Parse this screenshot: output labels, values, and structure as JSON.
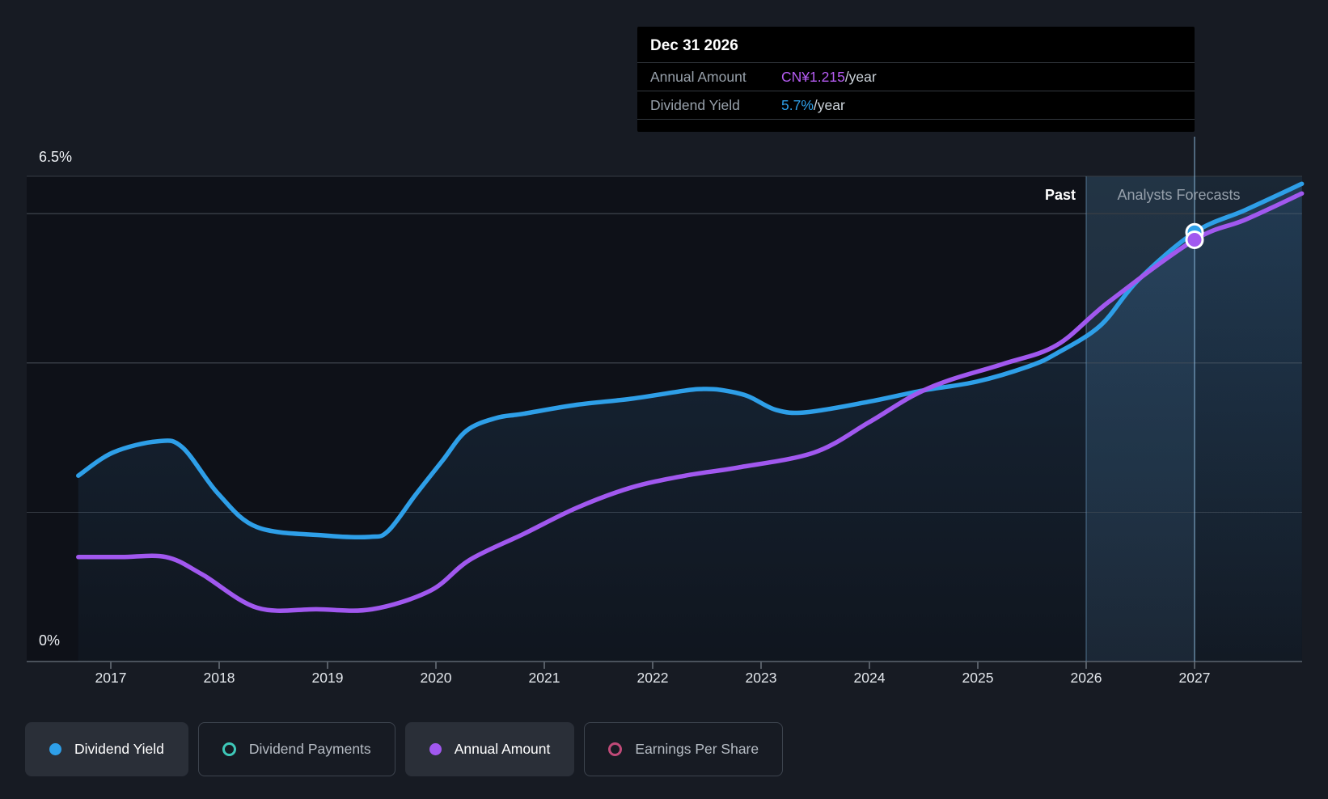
{
  "tooltip": {
    "date": "Dec 31 2026",
    "rows": [
      {
        "label": "Annual Amount",
        "value": "CN¥1.215",
        "suffix": "/year",
        "color": "#b55cf2"
      },
      {
        "label": "Dividend Yield",
        "value": "5.7%",
        "suffix": "/year",
        "color": "#2e9fe8"
      }
    ]
  },
  "axis": {
    "y_top_label": "6.5%",
    "y_bottom_label": "0%",
    "years": [
      "2017",
      "2018",
      "2019",
      "2020",
      "2021",
      "2022",
      "2023",
      "2024",
      "2025",
      "2026",
      "2027"
    ]
  },
  "regions": {
    "past_label": "Past",
    "forecast_label": "Analysts Forecasts"
  },
  "legend": [
    {
      "label": "Dividend Yield",
      "marker": "filled",
      "color": "#2e9fe8",
      "active": true
    },
    {
      "label": "Dividend Payments",
      "marker": "ring",
      "color": "#3ec8b8",
      "active": false
    },
    {
      "label": "Annual Amount",
      "marker": "filled",
      "color": "#a158ef",
      "active": true
    },
    {
      "label": "Earnings Per Share",
      "marker": "ring",
      "color": "#c04a78",
      "active": false
    }
  ],
  "chart_data": {
    "type": "line",
    "title": "Dividend yield and payments history with analysts forecasts",
    "x_axis": {
      "range": [
        2016.22,
        2028.0
      ],
      "ticks": [
        2017,
        2018,
        2019,
        2020,
        2021,
        2022,
        2023,
        2024,
        2025,
        2026,
        2027
      ]
    },
    "y_axis": {
      "range": [
        0,
        6.5
      ],
      "unit": "%",
      "gridlines_pct": [
        0,
        2,
        4,
        6,
        6.5
      ],
      "labeled": {
        "6.5": "6.5%",
        "0": "0%"
      }
    },
    "past_forecast_boundary_year": 2026,
    "hover": {
      "x_year": 2027.0,
      "date_label": "Dec 31 2026",
      "markers": [
        {
          "series": "Dividend Yield",
          "y_plot_pct": 5.75,
          "color": "#2e9fe8",
          "value": "5.7%/year"
        },
        {
          "series": "Annual Amount",
          "y_plot_pct": 5.65,
          "color": "#a158ef",
          "value": "CN¥1.215/year"
        }
      ]
    },
    "series": [
      {
        "name": "Dividend Yield",
        "color": "#2e9fe8",
        "unit": "%/year",
        "fill_under": true,
        "points": [
          [
            2016.7,
            2.49
          ],
          [
            2017.02,
            2.8
          ],
          [
            2017.43,
            2.95
          ],
          [
            2017.66,
            2.87
          ],
          [
            2017.99,
            2.25
          ],
          [
            2018.35,
            1.8
          ],
          [
            2018.96,
            1.69
          ],
          [
            2019.39,
            1.67
          ],
          [
            2019.56,
            1.75
          ],
          [
            2019.81,
            2.23
          ],
          [
            2020.06,
            2.69
          ],
          [
            2020.28,
            3.09
          ],
          [
            2020.55,
            3.26
          ],
          [
            2020.81,
            3.32
          ],
          [
            2021.3,
            3.44
          ],
          [
            2021.8,
            3.52
          ],
          [
            2022.3,
            3.63
          ],
          [
            2022.45,
            3.65
          ],
          [
            2022.62,
            3.64
          ],
          [
            2022.87,
            3.56
          ],
          [
            2023.14,
            3.37
          ],
          [
            2023.42,
            3.34
          ],
          [
            2023.99,
            3.48
          ],
          [
            2024.49,
            3.63
          ],
          [
            2024.99,
            3.75
          ],
          [
            2025.48,
            3.96
          ],
          [
            2025.73,
            4.13
          ],
          [
            2026.13,
            4.5
          ],
          [
            2026.48,
            5.11
          ],
          [
            2027.0,
            5.75
          ],
          [
            2027.47,
            6.05
          ],
          [
            2027.99,
            6.4
          ]
        ]
      },
      {
        "name": "Annual Amount",
        "color": "#a158ef",
        "unit": "CN¥/year",
        "fill_under": false,
        "note": "plotted against hidden currency scale; value at Dec 31 2026 = CN¥1.215/year",
        "points": [
          [
            2016.7,
            1.4
          ],
          [
            2017.1,
            1.4
          ],
          [
            2017.51,
            1.4
          ],
          [
            2017.84,
            1.17
          ],
          [
            2018.35,
            0.72
          ],
          [
            2018.9,
            0.7
          ],
          [
            2019.41,
            0.7
          ],
          [
            2019.95,
            0.95
          ],
          [
            2020.31,
            1.36
          ],
          [
            2020.81,
            1.71
          ],
          [
            2021.3,
            2.06
          ],
          [
            2021.8,
            2.33
          ],
          [
            2022.3,
            2.49
          ],
          [
            2022.79,
            2.6
          ],
          [
            2023.49,
            2.8
          ],
          [
            2023.99,
            3.2
          ],
          [
            2024.4,
            3.56
          ],
          [
            2024.74,
            3.77
          ],
          [
            2025.24,
            3.99
          ],
          [
            2025.73,
            4.24
          ],
          [
            2026.21,
            4.82
          ],
          [
            2027.0,
            5.65
          ],
          [
            2027.47,
            5.92
          ],
          [
            2027.99,
            6.27
          ]
        ]
      }
    ],
    "legend_position": "bottom",
    "grid": true
  },
  "colors": {
    "page_bg": "#171b23",
    "plot_bg": "#0e1118",
    "gridline": "#363c44",
    "axis_line": "#4a515a",
    "boundary_line": "rgba(130,180,220,0.28)",
    "crosshair": "rgba(150,200,235,0.45)"
  }
}
